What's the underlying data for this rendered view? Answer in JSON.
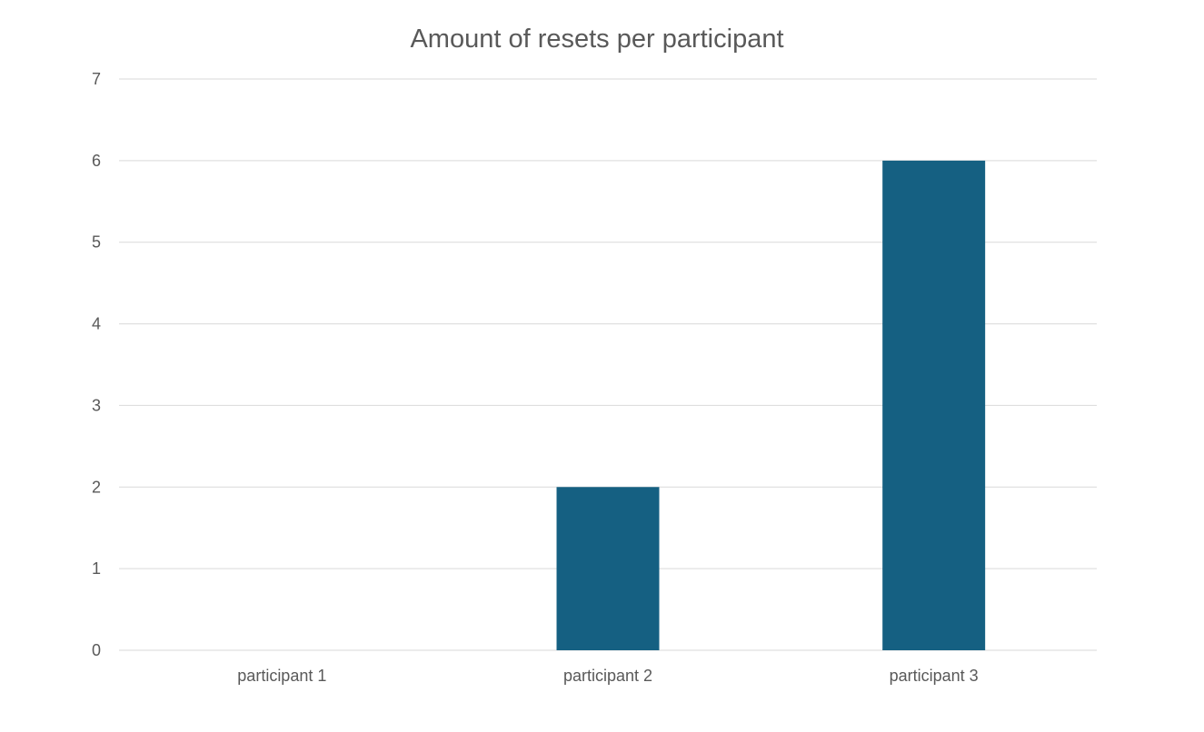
{
  "chart_data": {
    "type": "bar",
    "title": "Amount of resets per participant",
    "xlabel": "",
    "ylabel": "",
    "categories": [
      "participant 1",
      "participant 2",
      "participant 3"
    ],
    "values": [
      0,
      2,
      6
    ],
    "ylim": [
      0,
      7
    ],
    "yticks": [
      0,
      1,
      2,
      3,
      4,
      5,
      6,
      7
    ],
    "grid": true,
    "legend": "none",
    "bar_color": "#156082",
    "grid_color": "#d9d9d9",
    "text_color": "#595959"
  }
}
